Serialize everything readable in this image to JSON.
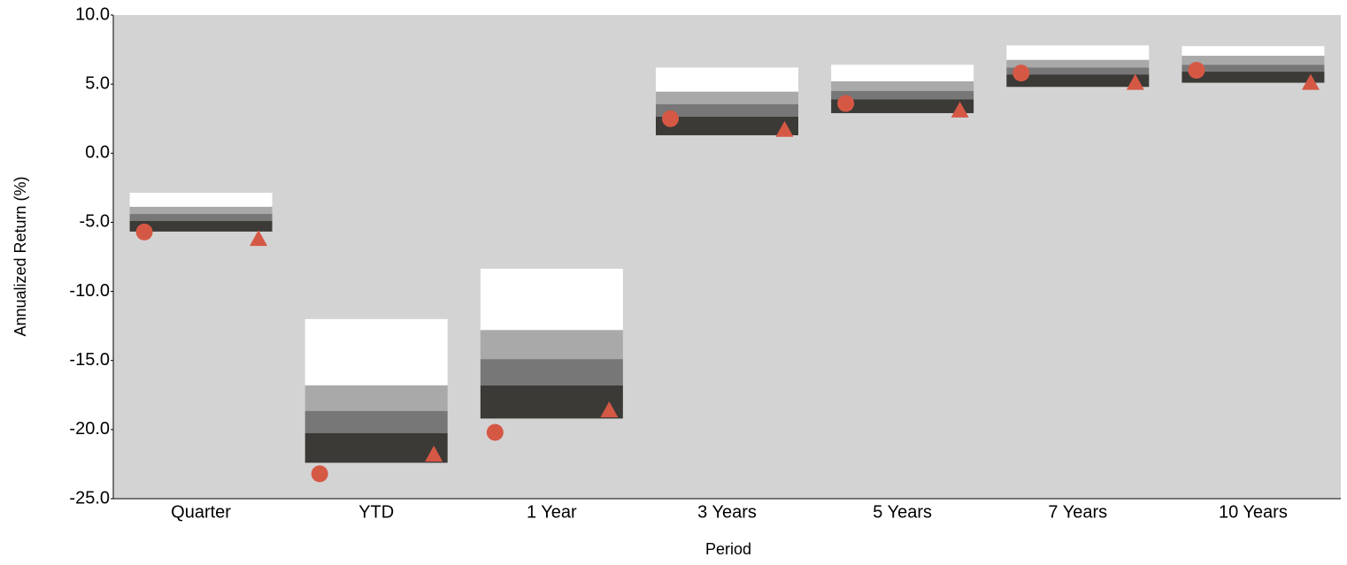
{
  "chart_data": {
    "type": "floating-range",
    "x_label": "Period",
    "y_label": "Annualized Return (%)",
    "categories": [
      "Quarter",
      "YTD",
      "1 Year",
      "3 Years",
      "5 Years",
      "7 Years",
      "10 Years"
    ],
    "bounds": [
      [
        -2.86,
        -3.88,
        -4.4,
        -4.9,
        -5.67
      ],
      [
        -12.0,
        -16.8,
        -18.65,
        -20.25,
        -22.4
      ],
      [
        -8.36,
        -12.8,
        -14.9,
        -16.8,
        -19.2
      ],
      [
        6.2,
        4.45,
        3.55,
        2.65,
        1.3
      ],
      [
        6.4,
        5.2,
        4.5,
        3.9,
        2.9
      ],
      [
        7.8,
        6.75,
        6.2,
        5.7,
        4.8
      ],
      [
        7.75,
        7.05,
        6.4,
        5.9,
        5.1
      ]
    ],
    "band_colors": [
      "#ffffff",
      "#a9a9a9",
      "#777777",
      "#3b3a36"
    ],
    "markers": [
      {
        "shape": "circle",
        "color": "#d55845",
        "values": [
          -5.7,
          -23.2,
          -20.2,
          2.5,
          3.6,
          5.8,
          6.0
        ]
      },
      {
        "shape": "triangle",
        "color": "#d55845",
        "values": [
          -6.2,
          -21.8,
          -18.6,
          1.7,
          3.1,
          5.1,
          5.1
        ]
      }
    ],
    "ylim": [
      -25,
      10
    ],
    "yticks": [
      {
        "value": -25,
        "label": "-25.0"
      },
      {
        "value": -20,
        "label": "-20.0"
      },
      {
        "value": -15,
        "label": "-15.0"
      },
      {
        "value": -10,
        "label": "-10.0"
      },
      {
        "value": -5,
        "label": "-5.0"
      },
      {
        "value": 0,
        "label": "0.0"
      },
      {
        "value": 5,
        "label": "5.0"
      },
      {
        "value": 10,
        "label": "10.0"
      }
    ],
    "plot_background": "#d3d3d3"
  }
}
